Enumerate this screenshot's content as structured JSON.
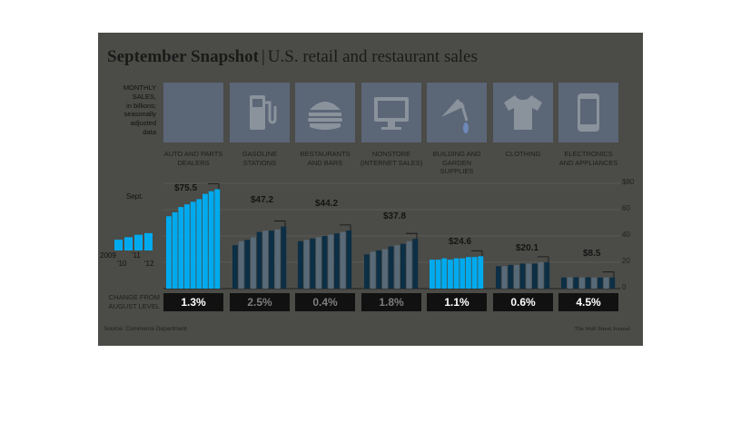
{
  "header": {
    "title_bold": "September Snapshot",
    "separator": "|",
    "title_rest": "U.S. retail and restaurant sales"
  },
  "axis_note": [
    "MONTHLY",
    "SALES,",
    "in billions;",
    "seasonally",
    "adjusted",
    "data"
  ],
  "legend": {
    "marker": "Sept.",
    "years": [
      "2009",
      "'10",
      "'11",
      "'12"
    ]
  },
  "change_label": [
    "CHANGE FROM",
    "AUGUST LEVEL"
  ],
  "source": "Source: Commerce Department",
  "credit": "The Wall Street Journal",
  "icons": [
    "car-icon",
    "gas-pump-icon",
    "burger-icon",
    "computer-monitor-icon",
    "trowel-icon",
    "tshirt-icon",
    "smartphone-icon"
  ],
  "colors": {
    "background": "#4b4b47",
    "tile": "#5b6677",
    "bar_dark": "#0c2f45",
    "bar_light": "#586a78",
    "highlight": "#00aaee"
  },
  "chart_data": {
    "type": "bar",
    "title": "September Snapshot | U.S. retail and restaurant sales",
    "ylabel": "MONTHLY SALES, in billions; seasonally adjusted data",
    "ylim": [
      0,
      80
    ],
    "yticks": [
      "$80",
      "60",
      "40",
      "20",
      "0"
    ],
    "x_labels": [
      "2009",
      "'10",
      "'11",
      "'12"
    ],
    "series": [
      {
        "category": "AUTO AND PARTS DEALERS",
        "september_2012": "$75.5",
        "change_from_august": "1.3%",
        "values": [
          55,
          58,
          62,
          64,
          66,
          68,
          72,
          74,
          75.5
        ]
      },
      {
        "category": "GASOLINE STATIONS",
        "september_2012": "$47.2",
        "change_from_august": "2.5%",
        "values": [
          33,
          36,
          37,
          39,
          43,
          44,
          44,
          45,
          47.2
        ]
      },
      {
        "category": "RESTAURANTS AND BARS",
        "september_2012": "$44.2",
        "change_from_august": "0.4%",
        "values": [
          36,
          37,
          38,
          39,
          40,
          41,
          42,
          43,
          44.2
        ]
      },
      {
        "category": "NONSTORE (INTERNET SALES)",
        "september_2012": "$37.8",
        "change_from_august": "1.8%",
        "values": [
          26,
          28,
          29,
          30,
          32,
          33,
          34,
          36,
          37.8
        ]
      },
      {
        "category": "BUILDING AND GARDEN SUPPLIES",
        "september_2012": "$24.6",
        "change_from_august": "1.1%",
        "values": [
          22,
          22,
          23,
          22,
          23,
          23,
          24,
          24,
          24.6
        ]
      },
      {
        "category": "CLOTHING",
        "september_2012": "$20.1",
        "change_from_august": "0.6%",
        "values": [
          17,
          17,
          18,
          18,
          19,
          19,
          19,
          20,
          20.1
        ]
      },
      {
        "category": "ELECTRONICS AND APPLIANCES",
        "september_2012": "$8.5",
        "change_from_august": "4.5%",
        "values": [
          8.5,
          8.6,
          8.6,
          8.5,
          8.6,
          8.5,
          8.4,
          8.5,
          8.5
        ]
      }
    ],
    "highlighted": [
      0,
      4
    ]
  }
}
